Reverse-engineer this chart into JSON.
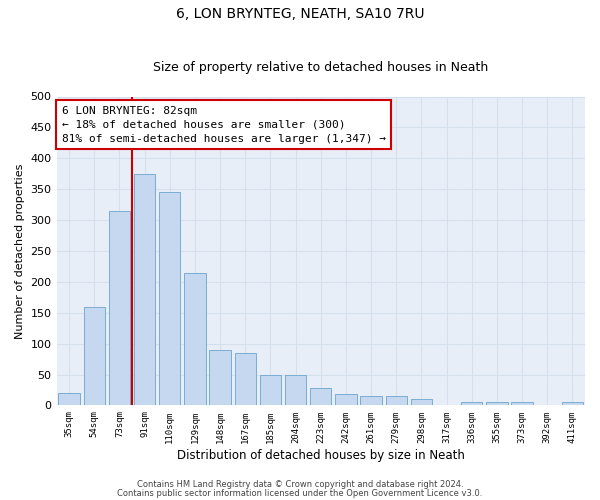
{
  "title_line1": "6, LON BRYNTEG, NEATH, SA10 7RU",
  "title_line2": "Size of property relative to detached houses in Neath",
  "xlabel": "Distribution of detached houses by size in Neath",
  "ylabel": "Number of detached properties",
  "categories": [
    "35sqm",
    "54sqm",
    "73sqm",
    "91sqm",
    "110sqm",
    "129sqm",
    "148sqm",
    "167sqm",
    "185sqm",
    "204sqm",
    "223sqm",
    "242sqm",
    "261sqm",
    "279sqm",
    "298sqm",
    "317sqm",
    "336sqm",
    "355sqm",
    "373sqm",
    "392sqm",
    "411sqm"
  ],
  "values": [
    20,
    160,
    315,
    375,
    345,
    215,
    90,
    85,
    50,
    50,
    28,
    18,
    15,
    15,
    10,
    0,
    5,
    5,
    5,
    0,
    5
  ],
  "bar_color": "#c5d8f0",
  "bar_edge_color": "#7aadd4",
  "vline_color": "#cc0000",
  "vline_x_index": 2,
  "annotation_text": "6 LON BRYNTEG: 82sqm\n← 18% of detached houses are smaller (300)\n81% of semi-detached houses are larger (1,347) →",
  "annotation_box_color": "#ffffff",
  "annotation_box_edge": "#cc0000",
  "ylim": [
    0,
    500
  ],
  "yticks": [
    0,
    50,
    100,
    150,
    200,
    250,
    300,
    350,
    400,
    450,
    500
  ],
  "grid_color": "#d5e0ee",
  "bg_color": "#e8eef8",
  "footer_line1": "Contains HM Land Registry data © Crown copyright and database right 2024.",
  "footer_line2": "Contains public sector information licensed under the Open Government Licence v3.0.",
  "title_fontsize": 10,
  "subtitle_fontsize": 9,
  "footer_fontsize": 6,
  "ylabel_fontsize": 8,
  "xlabel_fontsize": 8.5,
  "bar_width": 0.85
}
